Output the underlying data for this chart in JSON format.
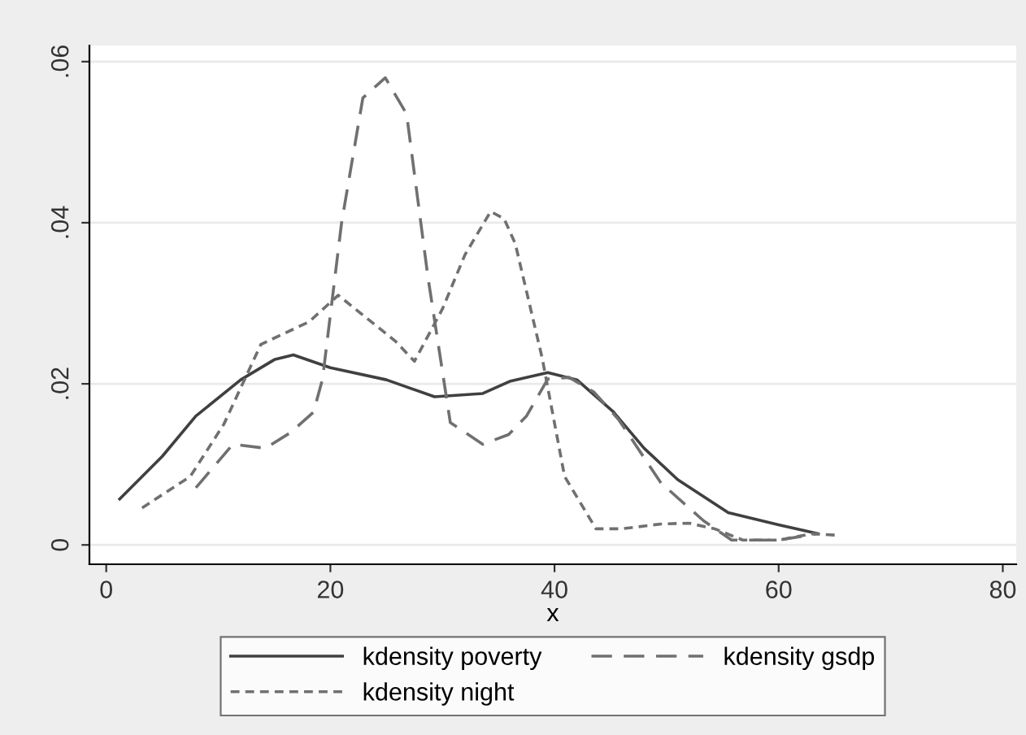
{
  "chart_data": {
    "type": "line",
    "xlabel": "x",
    "xlim": [
      -1.5,
      81.2
    ],
    "xticks": [
      0,
      20,
      40,
      60,
      80
    ],
    "ylim": [
      -0.0024,
      0.062
    ],
    "yticks": [
      {
        "value": 0,
        "label": "0"
      },
      {
        "value": 0.02,
        "label": ".02"
      },
      {
        "value": 0.04,
        "label": ".04"
      },
      {
        "value": 0.06,
        "label": ".06"
      }
    ],
    "grid": "y",
    "legend": "bottom",
    "series": [
      {
        "name": "kdensity poverty",
        "color": "#404040",
        "line_style": "solid",
        "x": [
          1.2,
          5,
          8,
          12,
          15,
          16.7,
          20,
          25,
          29.3,
          33.6,
          36,
          39.4,
          42,
          45.2,
          48,
          51,
          55.5,
          60,
          63.5
        ],
        "values": [
          0.0057,
          0.011,
          0.016,
          0.0205,
          0.023,
          0.0236,
          0.022,
          0.0205,
          0.0184,
          0.0188,
          0.0203,
          0.0214,
          0.0205,
          0.0166,
          0.012,
          0.0081,
          0.004,
          0.0025,
          0.0014
        ]
      },
      {
        "name": "kdensity night",
        "color": "#707070",
        "line_style": "dashed",
        "x": [
          3.2,
          7.5,
          10.5,
          13.8,
          18.1,
          20.7,
          25.8,
          27.5,
          30,
          32,
          34.3,
          35.5,
          36.5,
          38.9,
          40.9,
          43.7,
          46,
          49.5,
          52,
          54.3,
          56.8,
          60,
          63,
          65.2
        ],
        "values": [
          0.0046,
          0.0085,
          0.015,
          0.0249,
          0.0277,
          0.031,
          0.0253,
          0.0228,
          0.0293,
          0.036,
          0.0414,
          0.0405,
          0.0374,
          0.0232,
          0.0085,
          0.002,
          0.002,
          0.0026,
          0.0027,
          0.002,
          0.0006,
          0.0006,
          0.0014,
          0.0012
        ]
      },
      {
        "name": "kdensity gsdp",
        "color": "#707070",
        "line_style": "dashed",
        "x": [
          8,
          11.3,
          14.2,
          16.5,
          18.5,
          19.3,
          21,
          22.9,
          24.9,
          26.8,
          28.7,
          30.7,
          33.6,
          35.9,
          37.5,
          39.4,
          41.3,
          43.5,
          45.7,
          49.5,
          53.3,
          55.8,
          60,
          63.5
        ],
        "values": [
          0.0071,
          0.0125,
          0.012,
          0.014,
          0.0165,
          0.0206,
          0.04,
          0.0555,
          0.058,
          0.0535,
          0.0333,
          0.0152,
          0.0125,
          0.0137,
          0.016,
          0.0206,
          0.0208,
          0.019,
          0.0156,
          0.0077,
          0.003,
          0.0006,
          0.0006,
          0.0014
        ]
      }
    ]
  }
}
